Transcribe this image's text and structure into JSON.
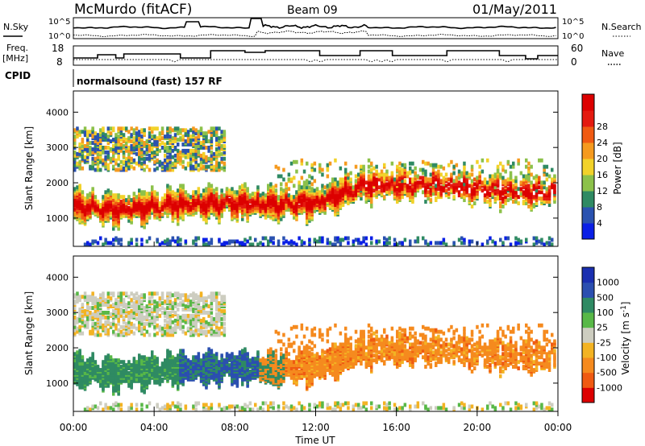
{
  "header": {
    "station": "McMurdo (fitACF)",
    "beam": "Beam 09",
    "date": "01/May/2011"
  },
  "strip_labels": {
    "nsky_label": "N.Sky",
    "nsearch_label": "N.Search",
    "freq_label_line1": "Freq.",
    "freq_label_line2": "[MHz]",
    "nave_label": "Nave",
    "cpid_label": "CPID",
    "nsky_ticks": [
      "10^5",
      "10^0"
    ],
    "nsearch_ticks": [
      "10^5",
      "10^0"
    ],
    "freq_ticks": [
      "18",
      "8"
    ],
    "nave_ticks": [
      "60",
      "0"
    ]
  },
  "cpid_text": "normalsound (fast) 157 RF",
  "colors": {
    "power_scale": [
      "#0a1fe6",
      "#2a52b0",
      "#2f8a63",
      "#8cc14a",
      "#f2d22a",
      "#f59a1f",
      "#f05a12",
      "#e41a10",
      "#dc0000"
    ],
    "velocity_scale": [
      "#dc0000",
      "#ef5a12",
      "#f58a1e",
      "#f3b323",
      "#cdcdc0",
      "#58b847",
      "#2f8a63",
      "#2b4fb0",
      "#1a2fb0"
    ]
  },
  "chart_data": [
    {
      "type": "heatmap",
      "name": "Power",
      "xlabel": "",
      "ylabel": "Slant Range [km]",
      "x_ticks": [
        "00:00",
        "04:00",
        "08:00",
        "12:00",
        "16:00",
        "20:00",
        "00:00"
      ],
      "y_ticks": [
        1000,
        2000,
        3000,
        4000
      ],
      "ylim": [
        200,
        4600
      ],
      "xlim_hours": [
        0,
        24
      ],
      "colorbar": {
        "label": "Power [dB]",
        "ticks": [
          4,
          8,
          12,
          16,
          20,
          24,
          28
        ]
      },
      "main_echo_band": [
        {
          "hour": 0.2,
          "range_center": 1300,
          "dominant": "28+ dB"
        },
        {
          "hour": 2.0,
          "range_center": 1200,
          "dominant": "28+ dB"
        },
        {
          "hour": 5.0,
          "range_center": 1350,
          "dominant": "28+ dB"
        },
        {
          "hour": 8.0,
          "range_center": 1400,
          "dominant": "28+ dB"
        },
        {
          "hour": 10.0,
          "range_center": 1350,
          "dominant": "28+ dB"
        },
        {
          "hour": 12.0,
          "range_center": 1400,
          "dominant": "28+ dB"
        },
        {
          "hour": 14.5,
          "range_center": 1900,
          "dominant": "20-28 dB"
        },
        {
          "hour": 18.0,
          "range_center": 1900,
          "dominant": "16-24 dB"
        },
        {
          "hour": 22.0,
          "range_center": 1700,
          "dominant": "16-28 dB"
        }
      ]
    },
    {
      "type": "heatmap",
      "name": "Velocity",
      "xlabel": "Time UT",
      "ylabel": "Slant Range [km]",
      "x_ticks": [
        "00:00",
        "04:00",
        "08:00",
        "12:00",
        "16:00",
        "20:00",
        "00:00"
      ],
      "y_ticks": [
        1000,
        2000,
        3000,
        4000
      ],
      "ylim": [
        200,
        4600
      ],
      "xlim_hours": [
        0,
        24
      ],
      "colorbar": {
        "label": "Velocity [m s",
        "label_sup": "-1",
        "label_end": "]",
        "ticks": [
          -1000,
          -500,
          -100,
          -25,
          25,
          100,
          500,
          1000
        ]
      },
      "main_echo_band": [
        {
          "hour": 2.0,
          "range_center": 1300,
          "dominant": "100 to 500"
        },
        {
          "hour": 5.0,
          "range_center": 1350,
          "dominant": "500 to 1000"
        },
        {
          "hour": 8.0,
          "range_center": 1400,
          "dominant": "500 to 1000"
        },
        {
          "hour": 12.0,
          "range_center": 1500,
          "dominant": "-100 to -500"
        },
        {
          "hour": 18.0,
          "range_center": 1900,
          "dominant": "-100 to -500"
        },
        {
          "hour": 22.0,
          "range_center": 1700,
          "dominant": "-100 to -500"
        }
      ]
    }
  ]
}
